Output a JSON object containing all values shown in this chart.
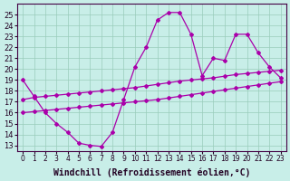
{
  "xlabel": "Windchill (Refroidissement éolien,°C)",
  "background_color": "#c8eee8",
  "grid_color": "#99ccbb",
  "line_color": "#aa00aa",
  "xlim_min": -0.5,
  "xlim_max": 23.5,
  "ylim_min": 12.5,
  "ylim_max": 26.0,
  "yticks": [
    13,
    14,
    15,
    16,
    17,
    18,
    19,
    20,
    21,
    22,
    23,
    24,
    25
  ],
  "xticks": [
    0,
    1,
    2,
    3,
    4,
    5,
    6,
    7,
    8,
    9,
    10,
    11,
    12,
    13,
    14,
    15,
    16,
    17,
    18,
    19,
    20,
    21,
    22,
    23
  ],
  "series1_x": [
    0,
    1,
    2,
    3,
    4,
    5,
    6,
    7,
    8,
    9,
    10,
    11,
    12,
    13,
    14,
    15,
    16,
    17,
    18,
    19,
    20,
    21,
    22,
    23
  ],
  "series1_y": [
    19.0,
    17.5,
    16.0,
    15.0,
    14.2,
    13.2,
    13.0,
    12.9,
    14.2,
    17.2,
    20.2,
    22.0,
    24.5,
    25.2,
    25.2,
    23.2,
    19.4,
    21.0,
    20.8,
    23.2,
    23.2,
    21.5,
    20.2,
    19.2
  ],
  "series2_x": [
    0,
    1,
    2,
    3,
    4,
    5,
    6,
    7,
    8,
    9,
    10,
    11,
    12,
    13,
    14,
    15,
    16,
    17,
    18,
    19,
    20,
    21,
    22,
    23
  ],
  "series2_y": [
    17.2,
    17.4,
    17.5,
    17.6,
    17.7,
    17.8,
    17.9,
    18.0,
    18.1,
    18.2,
    18.3,
    18.45,
    18.6,
    18.75,
    18.9,
    19.0,
    19.1,
    19.2,
    19.35,
    19.5,
    19.6,
    19.7,
    19.8,
    19.9
  ],
  "series3_x": [
    0,
    1,
    2,
    3,
    4,
    5,
    6,
    7,
    8,
    9,
    10,
    11,
    12,
    13,
    14,
    15,
    16,
    17,
    18,
    19,
    20,
    21,
    22,
    23
  ],
  "series3_y": [
    16.0,
    16.1,
    16.2,
    16.3,
    16.4,
    16.5,
    16.6,
    16.7,
    16.8,
    16.9,
    17.0,
    17.1,
    17.2,
    17.35,
    17.5,
    17.65,
    17.8,
    17.95,
    18.1,
    18.25,
    18.4,
    18.55,
    18.7,
    18.85
  ],
  "xlabel_fontsize": 7,
  "tick_fontsize": 6,
  "marker": "D",
  "marker_size": 2,
  "linewidth": 0.9
}
